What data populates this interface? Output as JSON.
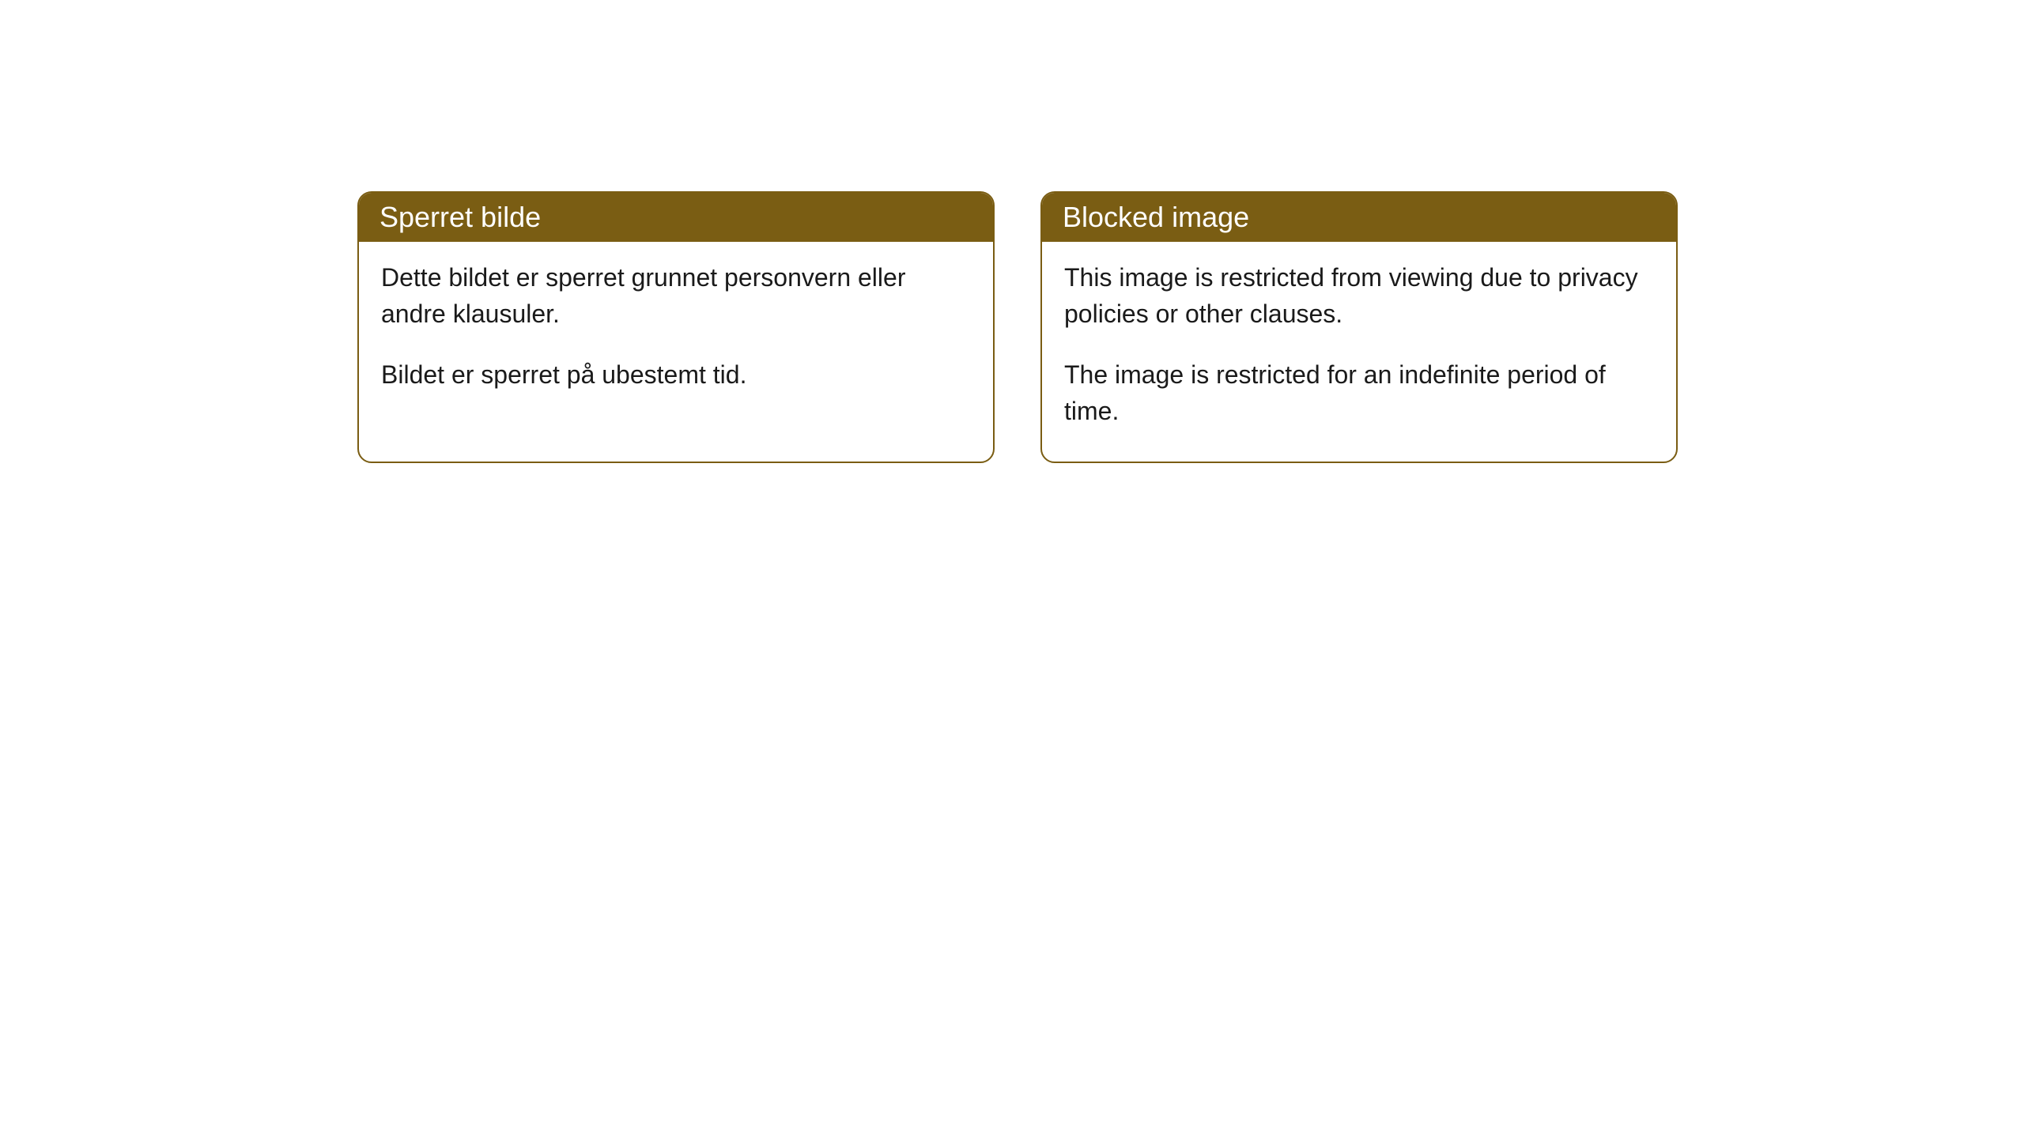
{
  "cards": [
    {
      "title": "Sperret bilde",
      "paragraph1": "Dette bildet er sperret grunnet personvern eller andre klausuler.",
      "paragraph2": "Bildet er sperret på ubestemt tid."
    },
    {
      "title": "Blocked image",
      "paragraph1": "This image is restricted from viewing due to privacy policies or other clauses.",
      "paragraph2": "The image is restricted for an indefinite period of time."
    }
  ],
  "style": {
    "header_background": "#7a5d13",
    "header_text_color": "#ffffff",
    "border_color": "#7a5d13",
    "body_background": "#ffffff",
    "body_text_color": "#1a1a1a",
    "border_radius": 18,
    "title_fontsize": 36,
    "body_fontsize": 32
  }
}
